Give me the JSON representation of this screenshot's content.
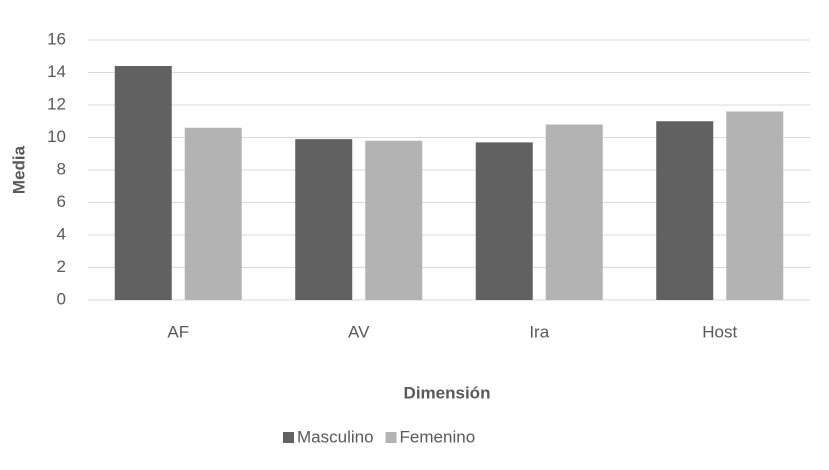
{
  "chart_data": {
    "type": "bar",
    "x_label": "Dimensión",
    "y_label": "Media",
    "categories": [
      "AF",
      "AV",
      "Ira",
      "Host"
    ],
    "series": [
      {
        "name": "Masculino",
        "color": "#616161",
        "values": [
          14.4,
          9.9,
          9.7,
          11.0
        ]
      },
      {
        "name": "Femenino",
        "color": "#b3b3b3",
        "values": [
          10.6,
          9.8,
          10.8,
          11.6
        ]
      }
    ],
    "ylim": [
      0,
      16
    ],
    "yticks": [
      0,
      2,
      4,
      6,
      8,
      10,
      12,
      14,
      16
    ],
    "grid": true,
    "legend": "bottom"
  }
}
